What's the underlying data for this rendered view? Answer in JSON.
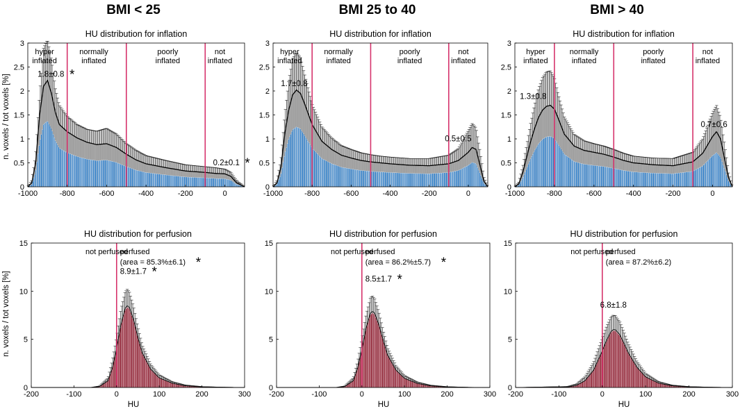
{
  "figure": {
    "columns": [
      "BMI < 25",
      "BMI 25 to 40",
      "BMI > 40"
    ],
    "ylabel": "n. voxels / tot voxels [%]",
    "xlabel": "HU",
    "colors": {
      "inflation_fill": "#1f74c4",
      "inflation_sd": "#a8a8a8",
      "perfusion_fill": "#8b1a2c",
      "perfusion_sd": "#d0d0d0",
      "divider": "#d6336c",
      "line": "#000000"
    }
  },
  "chart_data": [
    {
      "type": "bar",
      "group": "inflation",
      "title": "HU distribution  for inflation",
      "column": "BMI < 25",
      "xlim": [
        -1000,
        100
      ],
      "ylim": [
        0,
        3
      ],
      "xticks": [
        -1000,
        -800,
        -600,
        -400,
        -200,
        0
      ],
      "yticks": [
        0,
        0.5,
        1,
        1.5,
        2,
        2.5,
        3
      ],
      "dividers": [
        -800,
        -500,
        -100
      ],
      "regions": [
        [
          "hyper",
          "inflated"
        ],
        [
          "normally",
          "inflated"
        ],
        [
          "poorly",
          "inflated"
        ],
        [
          "not",
          "inflated"
        ]
      ],
      "region_x": [
        -915,
        -665,
        -290,
        -25
      ],
      "curve_x": [
        -1000,
        -980,
        -960,
        -940,
        -920,
        -900,
        -880,
        -860,
        -840,
        -800,
        -750,
        -700,
        -650,
        -600,
        -550,
        -500,
        -450,
        -400,
        -300,
        -200,
        -100,
        -50,
        0,
        30,
        60,
        100
      ],
      "mean_y": [
        0,
        0.08,
        0.5,
        1.5,
        2.1,
        2.22,
        1.95,
        1.55,
        1.3,
        1.15,
        1.02,
        0.93,
        0.88,
        0.9,
        0.82,
        0.68,
        0.56,
        0.48,
        0.4,
        0.33,
        0.3,
        0.28,
        0.27,
        0.22,
        0.08,
        0
      ],
      "sd_y": [
        0,
        0.05,
        0.15,
        0.45,
        0.8,
        0.85,
        0.7,
        0.5,
        0.4,
        0.32,
        0.28,
        0.27,
        0.28,
        0.32,
        0.28,
        0.22,
        0.2,
        0.17,
        0.15,
        0.13,
        0.12,
        0.12,
        0.1,
        0.08,
        0.05,
        0
      ],
      "labels": [
        {
          "text": "1.8±0.8",
          "x": -950,
          "y": 2.3,
          "star": true
        },
        {
          "text": "0.2±0.1",
          "x": -60,
          "y": 0.45,
          "star": true
        }
      ]
    },
    {
      "type": "bar",
      "group": "inflation",
      "title": "HU distribution  for inflation",
      "column": "BMI 25 to 40",
      "xlim": [
        -1000,
        100
      ],
      "ylim": [
        0,
        3
      ],
      "xticks": [
        -1000,
        -800,
        -600,
        -400,
        -200,
        0
      ],
      "yticks": [
        0,
        0.5,
        1,
        1.5,
        2,
        2.5,
        3
      ],
      "dividers": [
        -800,
        -500,
        -100
      ],
      "regions": [
        [
          "hyper",
          "inflated"
        ],
        [
          "normally",
          "inflated"
        ],
        [
          "poorly",
          "inflated"
        ],
        [
          "not",
          "inflated"
        ]
      ],
      "region_x": [
        -915,
        -665,
        -300,
        -25
      ],
      "curve_x": [
        -1000,
        -980,
        -960,
        -940,
        -920,
        -900,
        -880,
        -860,
        -840,
        -800,
        -750,
        -700,
        -650,
        -600,
        -550,
        -500,
        -450,
        -400,
        -300,
        -200,
        -100,
        -50,
        0,
        20,
        40,
        60,
        80,
        100
      ],
      "mean_y": [
        0,
        0.08,
        0.4,
        1.1,
        1.6,
        1.92,
        2.02,
        1.95,
        1.75,
        1.3,
        0.95,
        0.78,
        0.66,
        0.6,
        0.55,
        0.52,
        0.5,
        0.48,
        0.45,
        0.44,
        0.48,
        0.55,
        0.72,
        0.82,
        0.78,
        0.45,
        0.12,
        0
      ],
      "sd_y": [
        0,
        0.05,
        0.15,
        0.4,
        0.6,
        0.75,
        0.78,
        0.75,
        0.62,
        0.42,
        0.3,
        0.24,
        0.2,
        0.18,
        0.16,
        0.15,
        0.14,
        0.14,
        0.14,
        0.15,
        0.18,
        0.25,
        0.45,
        0.5,
        0.45,
        0.3,
        0.08,
        0
      ],
      "labels": [
        {
          "text": "1.7±0.8",
          "x": -960,
          "y": 2.1,
          "star": false
        },
        {
          "text": "0.5±0.5",
          "x": -120,
          "y": 0.95,
          "star": false
        }
      ]
    },
    {
      "type": "bar",
      "group": "inflation",
      "title": "HU distribution  for inflation",
      "column": "BMI > 40",
      "xlim": [
        -1000,
        100
      ],
      "ylim": [
        0,
        3
      ],
      "xticks": [
        -1000,
        -800,
        -600,
        -400,
        -200,
        0
      ],
      "yticks": [
        0,
        0.5,
        1,
        1.5,
        2,
        2.5,
        3
      ],
      "dividers": [
        -800,
        -500,
        -100
      ],
      "regions": [
        [
          "hyper",
          "inflated"
        ],
        [
          "normally",
          "inflated"
        ],
        [
          "poorly",
          "inflated"
        ],
        [
          "not",
          "inflated"
        ]
      ],
      "region_x": [
        -895,
        -650,
        -300,
        -25
      ],
      "curve_x": [
        -1000,
        -980,
        -960,
        -940,
        -920,
        -900,
        -880,
        -860,
        -840,
        -820,
        -800,
        -780,
        -750,
        -700,
        -650,
        -600,
        -550,
        -500,
        -450,
        -400,
        -300,
        -200,
        -100,
        -50,
        0,
        20,
        40,
        60,
        80,
        100
      ],
      "mean_y": [
        0,
        0.06,
        0.3,
        0.62,
        0.95,
        1.22,
        1.45,
        1.6,
        1.68,
        1.7,
        1.62,
        1.42,
        1.1,
        0.85,
        0.76,
        0.72,
        0.68,
        0.62,
        0.55,
        0.5,
        0.46,
        0.44,
        0.52,
        0.7,
        1.05,
        1.15,
        1.0,
        0.6,
        0.2,
        0
      ],
      "sd_y": [
        0,
        0.04,
        0.12,
        0.25,
        0.38,
        0.5,
        0.6,
        0.68,
        0.72,
        0.72,
        0.65,
        0.5,
        0.36,
        0.24,
        0.2,
        0.18,
        0.17,
        0.16,
        0.15,
        0.14,
        0.14,
        0.15,
        0.2,
        0.3,
        0.5,
        0.55,
        0.45,
        0.3,
        0.1,
        0
      ],
      "labels": [
        {
          "text": "1.3±0.8",
          "x": -975,
          "y": 1.83,
          "star": false
        },
        {
          "text": "0.7±0.6",
          "x": -60,
          "y": 1.25,
          "star": false
        }
      ]
    },
    {
      "type": "bar",
      "group": "perfusion",
      "title": "HU distribution  for perfusion",
      "column": "BMI < 25",
      "xlim": [
        -200,
        300
      ],
      "ylim": [
        0,
        15
      ],
      "xticks": [
        -200,
        -100,
        0,
        100,
        200,
        300
      ],
      "yticks": [
        0,
        5,
        10,
        15
      ],
      "dividers": [
        0
      ],
      "regions": [
        [
          "not perfused"
        ],
        [
          "perfused"
        ]
      ],
      "region_x": [
        -73,
        8
      ],
      "curve_x": [
        -200,
        -60,
        -40,
        -20,
        -10,
        0,
        10,
        20,
        25,
        30,
        40,
        50,
        60,
        80,
        100,
        130,
        160,
        200,
        250,
        300
      ],
      "mean_y": [
        0,
        0,
        0.1,
        0.7,
        2.0,
        4.0,
        6.5,
        8.2,
        8.5,
        8.3,
        7.0,
        5.2,
        3.6,
        1.9,
        1.0,
        0.45,
        0.18,
        0.06,
        0.02,
        0
      ],
      "sd_y": [
        0,
        0,
        0.05,
        0.3,
        0.8,
        1.2,
        1.6,
        1.7,
        1.7,
        1.6,
        1.35,
        1.05,
        0.8,
        0.5,
        0.3,
        0.15,
        0.08,
        0.03,
        0.01,
        0
      ],
      "area_label": "(area = 85.3%±6.1)",
      "area_star": true,
      "labels": [
        {
          "text": "8.9±1.7",
          "x": 8,
          "y": 11.8,
          "star": true
        }
      ]
    },
    {
      "type": "bar",
      "group": "perfusion",
      "title": "HU distribution  for perfusion",
      "column": "BMI 25 to 40",
      "xlim": [
        -200,
        300
      ],
      "ylim": [
        0,
        15
      ],
      "xticks": [
        -200,
        -100,
        0,
        100,
        200,
        300
      ],
      "yticks": [
        0,
        5,
        10,
        15
      ],
      "dividers": [
        0
      ],
      "regions": [
        [
          "not perfused"
        ],
        [
          "perfused"
        ]
      ],
      "region_x": [
        -73,
        8
      ],
      "curve_x": [
        -200,
        -60,
        -40,
        -20,
        -10,
        0,
        10,
        20,
        25,
        30,
        40,
        50,
        60,
        80,
        100,
        130,
        160,
        200,
        250,
        300
      ],
      "mean_y": [
        0,
        0,
        0.1,
        0.7,
        2.0,
        3.9,
        6.2,
        7.7,
        7.9,
        7.7,
        6.5,
        4.9,
        3.4,
        1.8,
        0.95,
        0.42,
        0.17,
        0.05,
        0.01,
        0
      ],
      "sd_y": [
        0,
        0,
        0.05,
        0.3,
        0.7,
        1.1,
        1.4,
        1.6,
        1.6,
        1.5,
        1.3,
        1.0,
        0.75,
        0.45,
        0.28,
        0.14,
        0.07,
        0.03,
        0.01,
        0
      ],
      "area_label": "(area = 86.2%±5.7)",
      "area_star": true,
      "labels": [
        {
          "text": "8.5±1.7",
          "x": 8,
          "y": 11.0,
          "star": true
        }
      ]
    },
    {
      "type": "bar",
      "group": "perfusion",
      "title": "HU distribution  for perfusion",
      "column": "BMI > 40",
      "xlim": [
        -200,
        300
      ],
      "ylim": [
        0,
        15
      ],
      "xticks": [
        -200,
        -100,
        0,
        100,
        200,
        300
      ],
      "yticks": [
        0,
        5,
        10,
        15
      ],
      "dividers": [
        0
      ],
      "regions": [
        [
          "not perfused"
        ],
        [
          "perfused"
        ]
      ],
      "region_x": [
        -73,
        8
      ],
      "curve_x": [
        -200,
        -80,
        -60,
        -40,
        -20,
        -10,
        0,
        10,
        20,
        25,
        30,
        40,
        50,
        60,
        80,
        100,
        130,
        160,
        200,
        250,
        300
      ],
      "mean_y": [
        0,
        0.05,
        0.2,
        0.7,
        1.8,
        2.8,
        3.8,
        4.9,
        5.8,
        6.0,
        6.0,
        5.5,
        4.6,
        3.6,
        2.1,
        1.1,
        0.45,
        0.18,
        0.06,
        0.02,
        0
      ],
      "sd_y": [
        0,
        0.05,
        0.15,
        0.4,
        0.8,
        1.1,
        1.3,
        1.45,
        1.5,
        1.5,
        1.45,
        1.35,
        1.15,
        0.95,
        0.6,
        0.35,
        0.15,
        0.07,
        0.03,
        0.01,
        0
      ],
      "area_label": "(area = 87.2%±6.2)",
      "area_star": false,
      "labels": [
        {
          "text": "6.8±1.8",
          "x": -5,
          "y": 8.3,
          "star": false
        }
      ]
    }
  ]
}
